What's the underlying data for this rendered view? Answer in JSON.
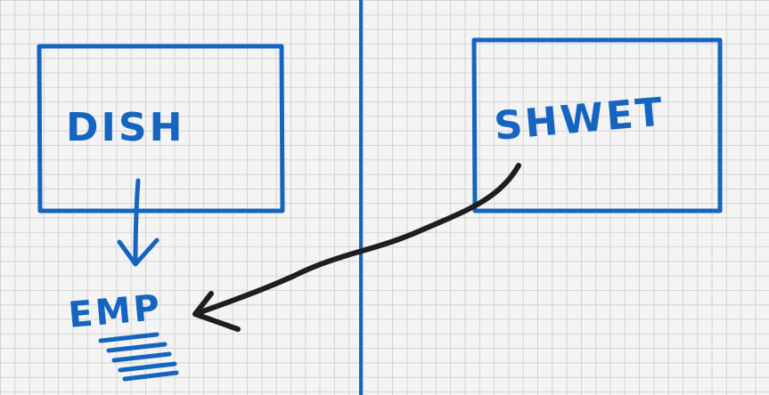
{
  "colors": {
    "ink_blue": "#1565c0",
    "ink_black": "#1e1e1e",
    "grid": "#d3d3d3",
    "paper": "#f4f4f4"
  },
  "boxes": {
    "left": {
      "label": "DISH"
    },
    "right": {
      "label": "SHWET"
    }
  },
  "target": {
    "label": "EMP"
  }
}
